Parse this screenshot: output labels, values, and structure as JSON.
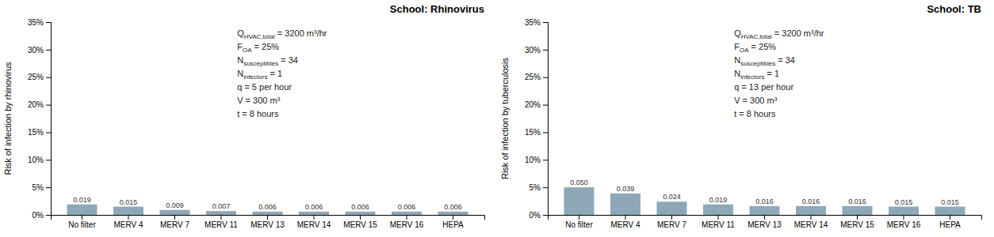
{
  "chart_data": [
    {
      "type": "bar",
      "title": "School: Rhinovirus",
      "ylabel": "Risk of infection by rhinovirus",
      "categories": [
        "No filter",
        "MERV 4",
        "MERV 7",
        "MERV 11",
        "MERV 13",
        "MERV 14",
        "MERV 15",
        "MERV 16",
        "HEPA"
      ],
      "values": [
        0.019,
        0.015,
        0.009,
        0.007,
        0.006,
        0.006,
        0.006,
        0.006,
        0.006
      ],
      "value_labels": [
        "0.019",
        "0.015",
        "0.009",
        "0.007",
        "0.006",
        "0.006",
        "0.006",
        "0.006",
        "0.006"
      ],
      "data_labels": true,
      "color": "#8fa8b8",
      "grid": false,
      "ylim": [
        0,
        0.35
      ],
      "yticks": [
        {
          "value": 0.0,
          "label": "0%"
        },
        {
          "value": 0.05,
          "label": "5%"
        },
        {
          "value": 0.1,
          "label": "10%"
        },
        {
          "value": 0.15,
          "label": "15%"
        },
        {
          "value": 0.2,
          "label": "20%"
        },
        {
          "value": 0.25,
          "label": "25%"
        },
        {
          "value": 0.3,
          "label": "30%"
        },
        {
          "value": 0.35,
          "label": "35%"
        }
      ],
      "annotations": [
        {
          "symbol": "Q",
          "subscript": "HVAC,total",
          "text": " = 3200 m³/hr"
        },
        {
          "symbol": "F",
          "subscript": "OA",
          "text": " = 25%"
        },
        {
          "symbol": "N",
          "subscript": "susceptibles",
          "text": " = 34"
        },
        {
          "symbol": "N",
          "subscript": "infectors",
          "text": " = 1"
        },
        {
          "text": "q = 5 per hour"
        },
        {
          "text": "V = 300 m³"
        },
        {
          "text": "t = 8 hours"
        }
      ]
    },
    {
      "type": "bar",
      "title": "School: TB",
      "ylabel": "Risk of infection by tuberculosis",
      "categories": [
        "No filter",
        "MERV 4",
        "MERV 7",
        "MERV 11",
        "MERV 13",
        "MERV 14",
        "MERV 15",
        "MERV 16",
        "HEPA"
      ],
      "values": [
        0.05,
        0.039,
        0.024,
        0.019,
        0.016,
        0.016,
        0.016,
        0.015,
        0.015
      ],
      "value_labels": [
        "0.050",
        "0.039",
        "0.024",
        "0.019",
        "0.016",
        "0.016",
        "0.016",
        "0.015",
        "0.015"
      ],
      "data_labels": true,
      "color": "#8fa8b8",
      "grid": false,
      "ylim": [
        0,
        0.35
      ],
      "yticks": [
        {
          "value": 0.0,
          "label": "0%"
        },
        {
          "value": 0.05,
          "label": "5%"
        },
        {
          "value": 0.1,
          "label": "10%"
        },
        {
          "value": 0.15,
          "label": "15%"
        },
        {
          "value": 0.2,
          "label": "20%"
        },
        {
          "value": 0.25,
          "label": "25%"
        },
        {
          "value": 0.3,
          "label": "30%"
        },
        {
          "value": 0.35,
          "label": "35%"
        }
      ],
      "annotations": [
        {
          "symbol": "Q",
          "subscript": "HVAC,total",
          "text": " = 3200 m³/hr"
        },
        {
          "symbol": "F",
          "subscript": "OA",
          "text": " = 25%"
        },
        {
          "symbol": "N",
          "subscript": "susceptibles",
          "text": " = 34"
        },
        {
          "symbol": "N",
          "subscript": "infectors",
          "text": " = 1"
        },
        {
          "text": "q = 13 per hour"
        },
        {
          "text": "V = 300 m³"
        },
        {
          "text": "t = 8 hours"
        }
      ]
    }
  ]
}
